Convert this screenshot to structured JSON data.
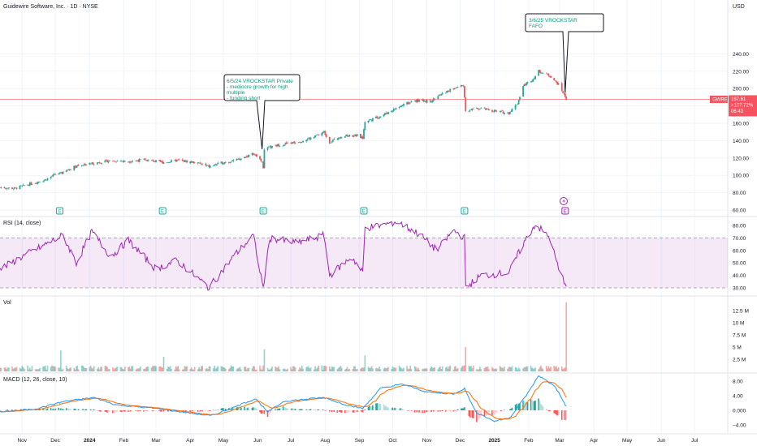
{
  "header": {
    "symbol_line": "Guidewire Software, Inc. · 1D · NYSE",
    "currency": "USD"
  },
  "colors": {
    "up": "#26a69a",
    "down": "#ef5350",
    "rsi_line": "#9c27b0",
    "macd_line": "#2196f3",
    "signal_line": "#ff6d00",
    "price_line": "#f7525f",
    "grid": "#f0f3fa"
  },
  "price_panel": {
    "ticks": [
      "240.00",
      "220.00",
      "200.00",
      "180.00",
      "160.00",
      "140.00",
      "120.00",
      "100.00",
      "80.00",
      "60.00"
    ],
    "last_price_label": {
      "ticker": "GWRE",
      "price": "187.61",
      "change": "+107.72%",
      "countdown": "06:43"
    },
    "annotations": [
      {
        "date": "2024-06-05",
        "lines": [
          "6/5/24 VROCKSTAR Private",
          "- mediocre growth for high",
          "multiple",
          "- funding short"
        ]
      },
      {
        "date": "2025-03-06",
        "lines": [
          "3/6/25 VROCKSTAR",
          "FAFO"
        ]
      }
    ],
    "earnings_label": "E",
    "earnings_dates": [
      "2023-12-05",
      "2024-03-07",
      "2024-06-06",
      "2024-09-05",
      "2024-12-05",
      "2025-03-06"
    ]
  },
  "rsi_panel": {
    "title": "RSI (14, close)",
    "ticks": [
      "80.00",
      "70.00",
      "60.00",
      "50.00",
      "40.00",
      "30.00"
    ]
  },
  "volume_panel": {
    "title": "Vol",
    "ticks": [
      "12.5 M",
      "10 M",
      "7.5 M",
      "5 M",
      "2.5 M"
    ]
  },
  "macd_panel": {
    "title": "MACD (12, 26, close, 10)",
    "ticks": [
      "8.00",
      "4.00",
      "0.000",
      "−4.00"
    ]
  },
  "time_axis": {
    "labels": [
      "Nov",
      "Dec",
      "2024",
      "Feb",
      "Mar",
      "Apr",
      "May",
      "Jun",
      "Jul",
      "Aug",
      "Sep",
      "Oct",
      "Nov",
      "Dec",
      "2025",
      "Feb",
      "Mar",
      "Apr",
      "May",
      "Jun",
      "Jul"
    ],
    "bold": [
      "2024",
      "2025"
    ]
  },
  "chart_data": {
    "type": "candlestick",
    "title": "Guidewire Software, Inc. · 1D · NYSE",
    "x_type": "date",
    "x_range": [
      "2023-10-12",
      "2025-07-31"
    ],
    "price_axis": {
      "ylim": [
        55,
        252
      ],
      "unit": "USD"
    },
    "close_anchors": [
      [
        "2023-10-12",
        86
      ],
      [
        "2023-10-25",
        85
      ],
      [
        "2023-11-08",
        90
      ],
      [
        "2023-11-22",
        95
      ],
      [
        "2023-12-01",
        101
      ],
      [
        "2023-12-08",
        103
      ],
      [
        "2023-12-20",
        111
      ],
      [
        "2024-01-05",
        114
      ],
      [
        "2024-01-20",
        117
      ],
      [
        "2024-02-05",
        116
      ],
      [
        "2024-02-20",
        118
      ],
      [
        "2024-03-07",
        115
      ],
      [
        "2024-03-20",
        117
      ],
      [
        "2024-04-05",
        115
      ],
      [
        "2024-04-18",
        110
      ],
      [
        "2024-05-01",
        115
      ],
      [
        "2024-05-15",
        118
      ],
      [
        "2024-05-28",
        125
      ],
      [
        "2024-06-05",
        116
      ],
      [
        "2024-06-06",
        107
      ],
      [
        "2024-06-07",
        130
      ],
      [
        "2024-06-20",
        135
      ],
      [
        "2024-07-05",
        138
      ],
      [
        "2024-07-20",
        143
      ],
      [
        "2024-07-31",
        150
      ],
      [
        "2024-08-05",
        138
      ],
      [
        "2024-08-15",
        145
      ],
      [
        "2024-08-30",
        146
      ],
      [
        "2024-09-04",
        143
      ],
      [
        "2024-09-06",
        162
      ],
      [
        "2024-09-20",
        168
      ],
      [
        "2024-10-05",
        178
      ],
      [
        "2024-10-20",
        186
      ],
      [
        "2024-11-05",
        186
      ],
      [
        "2024-11-15",
        194
      ],
      [
        "2024-11-25",
        200
      ],
      [
        "2024-12-04",
        204
      ],
      [
        "2024-12-06",
        175
      ],
      [
        "2024-12-20",
        177
      ],
      [
        "2025-01-05",
        173
      ],
      [
        "2025-01-14",
        172
      ],
      [
        "2025-01-22",
        183
      ],
      [
        "2025-01-27",
        203
      ],
      [
        "2025-02-05",
        211
      ],
      [
        "2025-02-10",
        220
      ],
      [
        "2025-02-20",
        215
      ],
      [
        "2025-03-01",
        203
      ],
      [
        "2025-03-07",
        188
      ]
    ],
    "last_close": 187.61,
    "change_percent": 107.72,
    "rsi": {
      "period": 14,
      "ylim": [
        26,
        84
      ],
      "band": [
        30,
        70
      ],
      "anchors": [
        [
          "2023-10-12",
          45
        ],
        [
          "2023-11-01",
          55
        ],
        [
          "2023-12-08",
          72
        ],
        [
          "2023-12-20",
          50
        ],
        [
          "2024-01-03",
          75
        ],
        [
          "2024-01-20",
          55
        ],
        [
          "2024-02-05",
          68
        ],
        [
          "2024-03-01",
          45
        ],
        [
          "2024-03-20",
          52
        ],
        [
          "2024-04-18",
          30
        ],
        [
          "2024-05-10",
          55
        ],
        [
          "2024-05-28",
          72
        ],
        [
          "2024-06-06",
          30
        ],
        [
          "2024-06-12",
          70
        ],
        [
          "2024-07-05",
          66
        ],
        [
          "2024-07-31",
          72
        ],
        [
          "2024-08-05",
          40
        ],
        [
          "2024-08-25",
          55
        ],
        [
          "2024-09-04",
          42
        ],
        [
          "2024-09-06",
          78
        ],
        [
          "2024-09-20",
          80
        ],
        [
          "2024-10-05",
          83
        ],
        [
          "2024-10-25",
          73
        ],
        [
          "2024-11-10",
          60
        ],
        [
          "2024-11-25",
          76
        ],
        [
          "2024-12-05",
          70
        ],
        [
          "2024-12-06",
          30
        ],
        [
          "2024-12-20",
          40
        ],
        [
          "2025-01-14",
          42
        ],
        [
          "2025-01-27",
          65
        ],
        [
          "2025-02-07",
          81
        ],
        [
          "2025-02-20",
          70
        ],
        [
          "2025-03-01",
          42
        ],
        [
          "2025-03-07",
          33
        ]
      ]
    },
    "volume": {
      "unit": "M",
      "ylim": [
        0,
        14
      ],
      "spikes": [
        [
          "2023-12-06",
          4.3
        ],
        [
          "2024-03-08",
          3.0
        ],
        [
          "2024-06-07",
          4.5
        ],
        [
          "2024-09-06",
          3.3
        ],
        [
          "2024-12-06",
          5.0
        ],
        [
          "2025-03-07",
          14.2
        ]
      ]
    },
    "macd": {
      "fast": 12,
      "slow": 26,
      "signal": 10,
      "ylim": [
        -6,
        11
      ],
      "anchors": [
        [
          "2023-10-12",
          -0.5
        ],
        [
          "2023-11-15",
          0.5
        ],
        [
          "2023-12-10",
          2.5
        ],
        [
          "2024-01-05",
          3.5
        ],
        [
          "2024-01-25",
          1.5
        ],
        [
          "2024-03-01",
          0.5
        ],
        [
          "2024-04-20",
          -1.5
        ],
        [
          "2024-05-10",
          0.8
        ],
        [
          "2024-05-30",
          3.2
        ],
        [
          "2024-06-10",
          -0.5
        ],
        [
          "2024-06-25",
          2.5
        ],
        [
          "2024-07-31",
          3.5
        ],
        [
          "2024-08-20",
          1.5
        ],
        [
          "2024-09-04",
          0.5
        ],
        [
          "2024-09-20",
          6.0
        ],
        [
          "2024-10-10",
          7.2
        ],
        [
          "2024-11-01",
          5.0
        ],
        [
          "2024-11-25",
          4.5
        ],
        [
          "2024-12-05",
          6.0
        ],
        [
          "2024-12-15",
          -0.5
        ],
        [
          "2025-01-01",
          -3.0
        ],
        [
          "2025-01-15",
          -2.0
        ],
        [
          "2025-02-01",
          5.0
        ],
        [
          "2025-02-10",
          9.5
        ],
        [
          "2025-02-25",
          6.5
        ],
        [
          "2025-03-07",
          1.0
        ]
      ]
    }
  }
}
